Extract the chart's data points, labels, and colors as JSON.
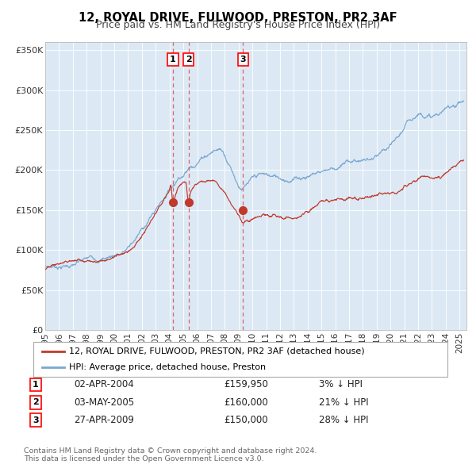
{
  "title": "12, ROYAL DRIVE, FULWOOD, PRESTON, PR2 3AF",
  "subtitle": "Price paid vs. HM Land Registry's House Price Index (HPI)",
  "background_color": "#ffffff",
  "plot_bg_color": "#dce9f5",
  "legend_line1": "12, ROYAL DRIVE, FULWOOD, PRESTON, PR2 3AF (detached house)",
  "legend_line2": "HPI: Average price, detached house, Preston",
  "footer": "Contains HM Land Registry data © Crown copyright and database right 2024.\nThis data is licensed under the Open Government Licence v3.0.",
  "transactions": [
    {
      "num": 1,
      "date": "02-APR-2004",
      "price": 159950,
      "price_str": "£159,950",
      "pct_str": "3% ↓ HPI",
      "x_year": 2004.25
    },
    {
      "num": 2,
      "date": "03-MAY-2005",
      "price": 160000,
      "price_str": "£160,000",
      "pct_str": "21% ↓ HPI",
      "x_year": 2005.37
    },
    {
      "num": 3,
      "date": "27-APR-2009",
      "price": 150000,
      "price_str": "£150,000",
      "pct_str": "28% ↓ HPI",
      "x_year": 2009.32
    }
  ],
  "hpi_color": "#7ba7d0",
  "price_color": "#c0392b",
  "vline_color": "#e05555",
  "dot_color": "#c0392b",
  "ylim": [
    0,
    360000
  ],
  "xlim_start": 1995.0,
  "xlim_end": 2025.5,
  "yticks": [
    0,
    50000,
    100000,
    150000,
    200000,
    250000,
    300000,
    350000
  ],
  "ytick_labels": [
    "£0",
    "£50K",
    "£100K",
    "£150K",
    "£200K",
    "£250K",
    "£300K",
    "£350K"
  ],
  "xticks": [
    1995,
    1996,
    1997,
    1998,
    1999,
    2000,
    2001,
    2002,
    2003,
    2004,
    2005,
    2006,
    2007,
    2008,
    2009,
    2010,
    2011,
    2012,
    2013,
    2014,
    2015,
    2016,
    2017,
    2018,
    2019,
    2020,
    2021,
    2022,
    2023,
    2024,
    2025
  ],
  "grid_color": "#ffffff",
  "spine_color": "#bbbbbb"
}
